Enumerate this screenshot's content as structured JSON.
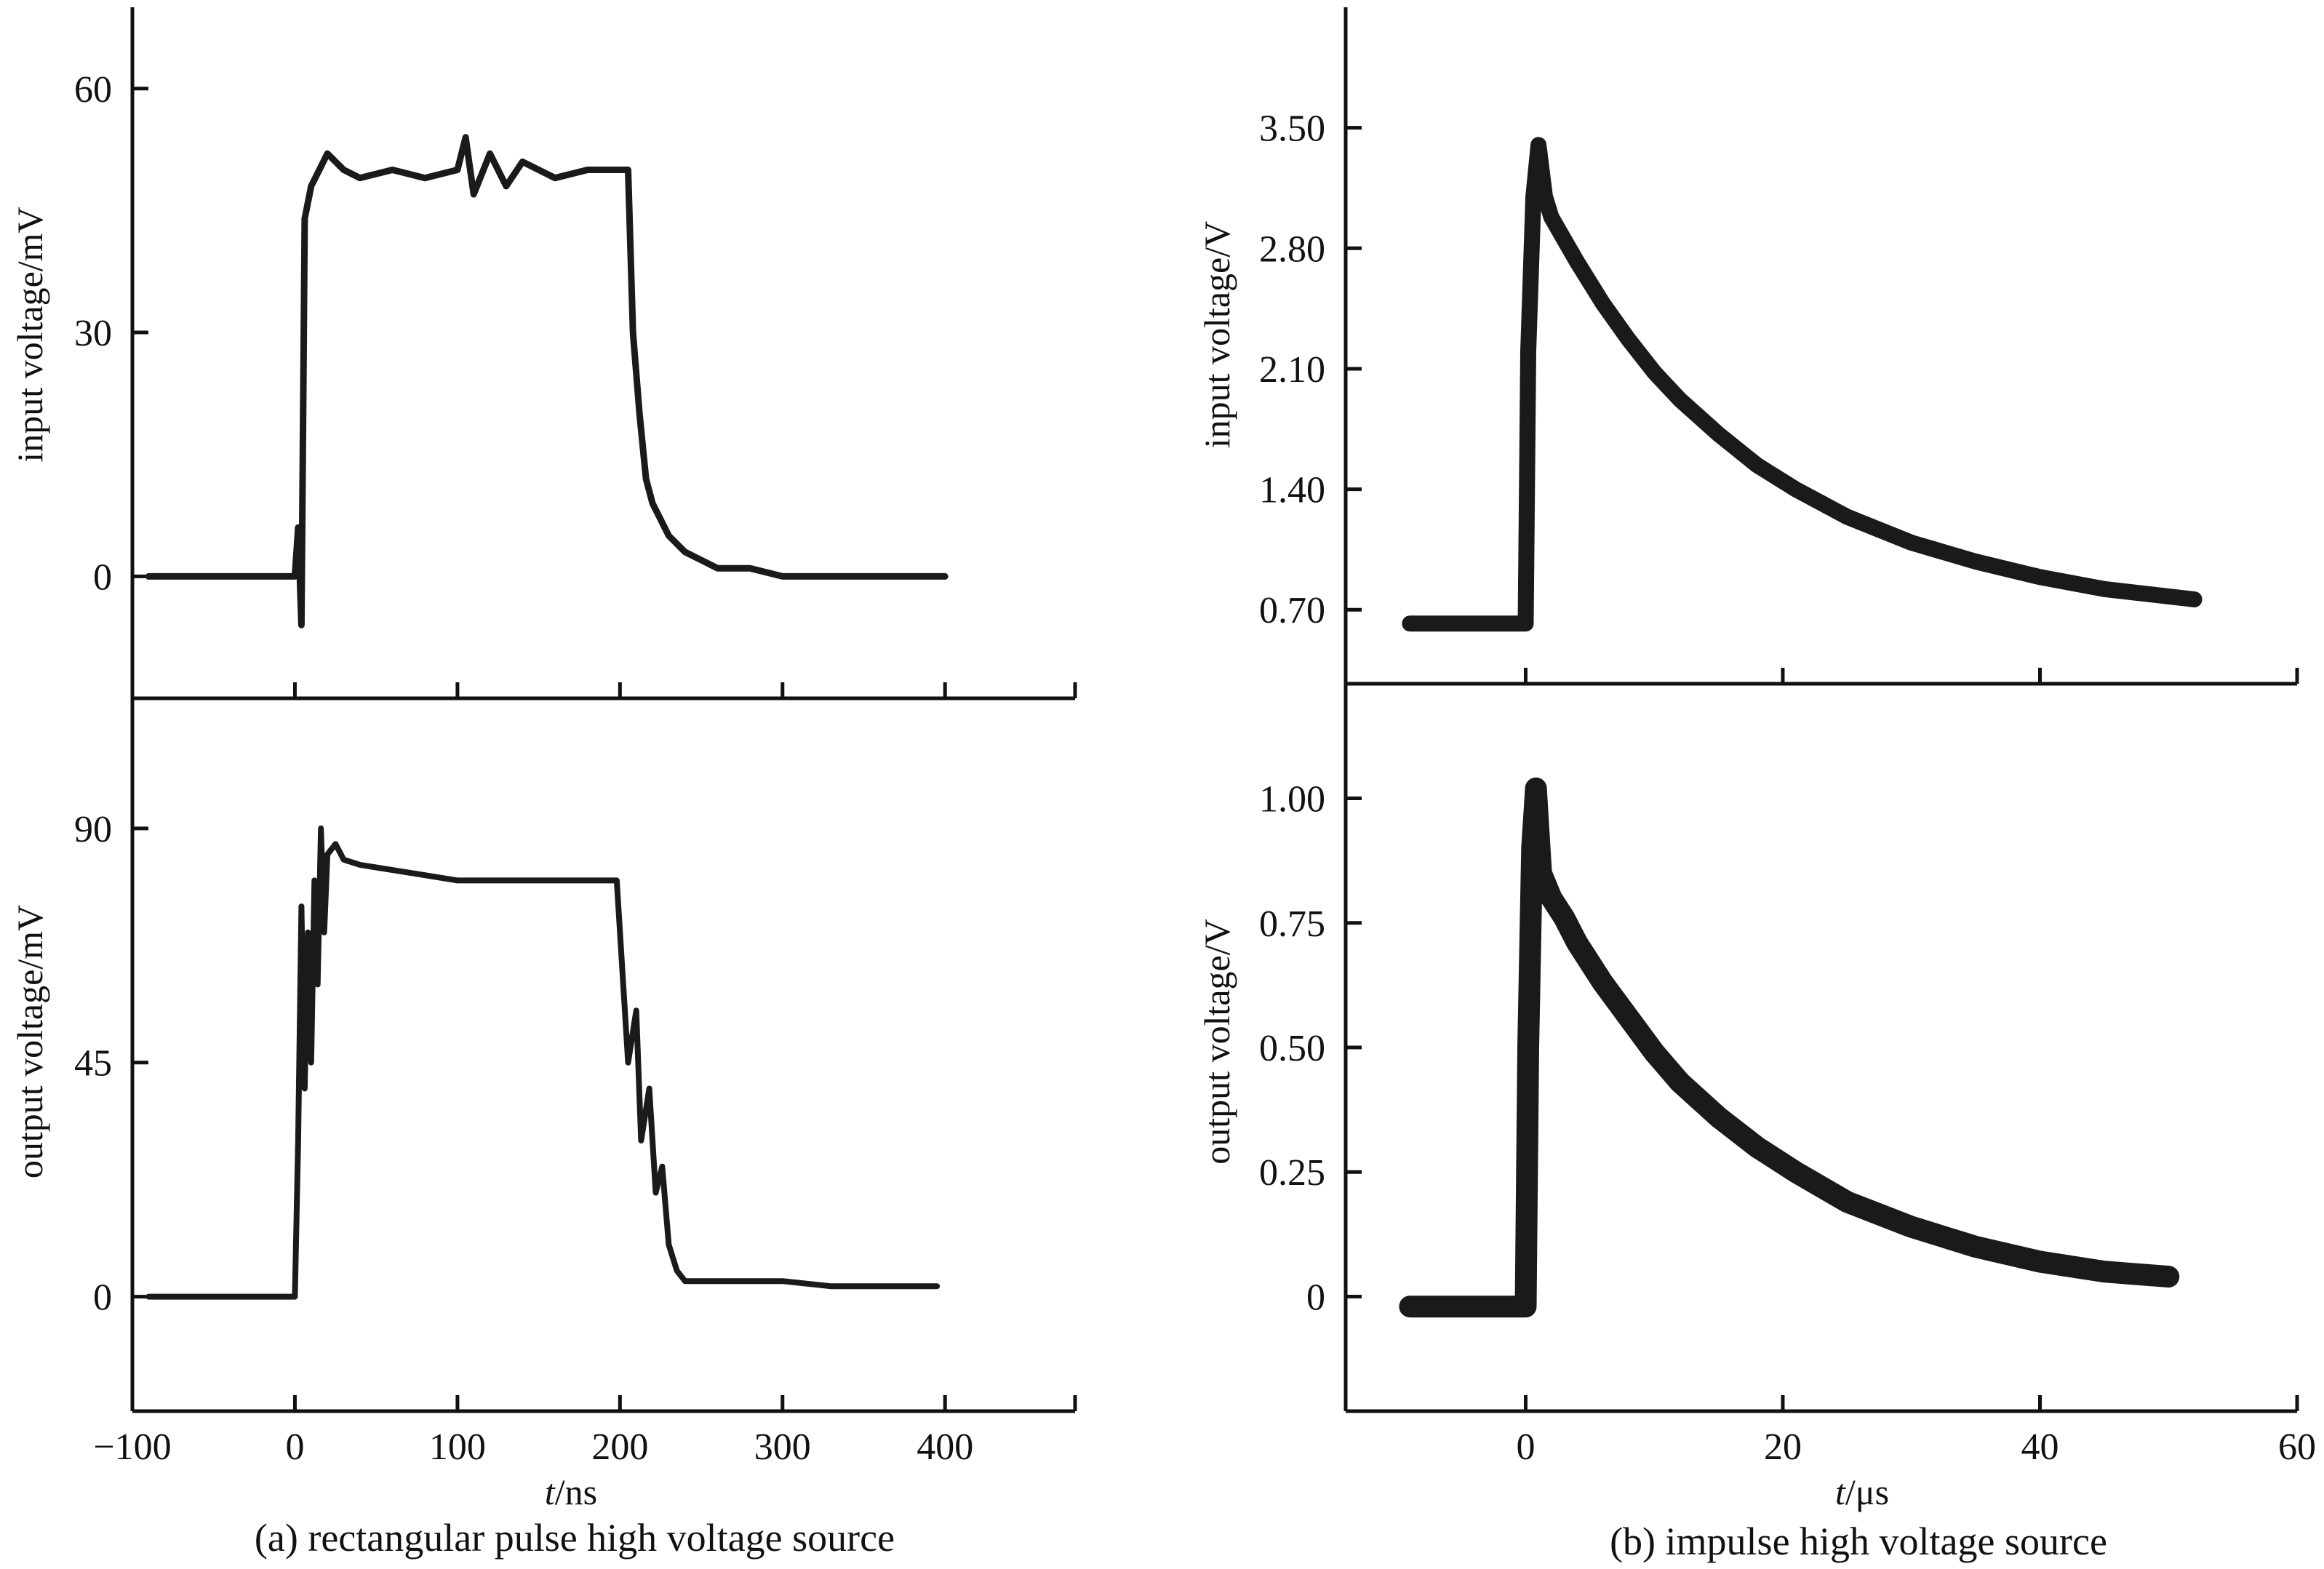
{
  "chart_data": [
    {
      "type": "line",
      "panel": "(a) top",
      "ylabel": "input voltage/mV",
      "xlim": [
        -100,
        480
      ],
      "ylim": [
        -15,
        70
      ],
      "yticks": [
        0,
        30,
        60
      ],
      "xticks": [
        -100,
        0,
        100,
        200,
        300,
        400
      ],
      "x_ticklabels_shown": false,
      "color": "#1a1a1a",
      "series": [
        {
          "x": [
            -90,
            -40,
            0,
            2,
            4,
            6,
            10,
            15,
            20,
            30,
            40,
            60,
            80,
            100,
            105,
            110,
            120,
            130,
            140,
            160,
            180,
            200,
            205,
            208,
            212,
            216,
            220,
            225,
            230,
            240,
            250,
            260,
            280,
            300,
            330,
            360,
            400
          ],
          "y": [
            0,
            0,
            0,
            6,
            -6,
            44,
            48,
            50,
            52,
            50,
            49,
            50,
            49,
            50,
            54,
            47,
            52,
            48,
            51,
            49,
            50,
            50,
            50,
            30,
            20,
            12,
            9,
            7,
            5,
            3,
            2,
            1,
            1,
            0,
            0,
            0,
            0
          ]
        }
      ]
    },
    {
      "type": "line",
      "panel": "(a) bottom",
      "ylabel": "output voltage/mV",
      "xlabel": "t/ns",
      "xlim": [
        -100,
        480
      ],
      "ylim": [
        -22,
        115
      ],
      "yticks": [
        0,
        45,
        90
      ],
      "xticks": [
        -100,
        0,
        100,
        200,
        300,
        400
      ],
      "color": "#1a1a1a",
      "series": [
        {
          "x": [
            -90,
            -40,
            0,
            2,
            4,
            6,
            8,
            10,
            12,
            14,
            16,
            18,
            20,
            25,
            30,
            40,
            60,
            80,
            100,
            130,
            160,
            190,
            198,
            202,
            205,
            210,
            213,
            218,
            222,
            226,
            230,
            235,
            240,
            245,
            250,
            260,
            280,
            300,
            330,
            360,
            395
          ],
          "y": [
            0,
            0,
            0,
            30,
            75,
            40,
            70,
            45,
            80,
            60,
            90,
            70,
            85,
            87,
            84,
            83,
            82,
            81,
            80,
            80,
            80,
            80,
            80,
            60,
            45,
            55,
            30,
            40,
            20,
            25,
            10,
            5,
            3,
            3,
            3,
            3,
            3,
            3,
            2,
            2,
            2
          ]
        }
      ]
    },
    {
      "type": "line",
      "panel": "(b) top",
      "ylabel": "input voltage/V",
      "xlim": [
        -14,
        60
      ],
      "ylim": [
        0.27,
        4.2
      ],
      "yticks": [
        0.7,
        1.4,
        2.1,
        2.8,
        3.5
      ],
      "yticklabels": [
        "0.70",
        "1.40",
        "2.10",
        "2.80",
        "3.50"
      ],
      "xticks": [
        0,
        20,
        40,
        60
      ],
      "x_ticklabels_shown": false,
      "color": "#1a1a1a",
      "series": [
        {
          "x": [
            -9,
            -5,
            0,
            0.2,
            0.6,
            1,
            1.5,
            2,
            3,
            4,
            6,
            8,
            10,
            12,
            15,
            18,
            21,
            25,
            30,
            35,
            40,
            45,
            52
          ],
          "y": [
            0.62,
            0.62,
            0.62,
            2.2,
            3.1,
            3.4,
            3.1,
            2.98,
            2.85,
            2.72,
            2.48,
            2.27,
            2.08,
            1.92,
            1.72,
            1.54,
            1.4,
            1.24,
            1.09,
            0.98,
            0.89,
            0.82,
            0.76
          ]
        }
      ]
    },
    {
      "type": "line",
      "panel": "(b) bottom",
      "ylabel": "output voltage/V",
      "xlabel": "t/μs",
      "xlim": [
        -14,
        60
      ],
      "ylim": [
        -0.23,
        1.23
      ],
      "yticks": [
        0,
        0.25,
        0.5,
        0.75,
        1.0
      ],
      "yticklabels": [
        "0",
        "0.25",
        "0.50",
        "0.75",
        "1.00"
      ],
      "xticks": [
        0,
        20,
        40,
        60
      ],
      "color": "#1a1a1a",
      "series": [
        {
          "x": [
            -9,
            -5,
            0,
            0.2,
            0.5,
            0.8,
            1.2,
            2,
            3,
            4,
            6,
            8,
            10,
            12,
            15,
            18,
            21,
            25,
            30,
            35,
            40,
            45,
            50
          ],
          "y": [
            -0.02,
            -0.02,
            -0.02,
            0.5,
            0.9,
            1.02,
            0.85,
            0.8,
            0.76,
            0.71,
            0.63,
            0.56,
            0.49,
            0.43,
            0.36,
            0.3,
            0.25,
            0.19,
            0.14,
            0.1,
            0.07,
            0.05,
            0.04
          ]
        }
      ]
    }
  ],
  "captions": {
    "left": "(a) rectangular pulse high voltage source",
    "right": "(b) impulse high voltage source"
  },
  "xlabels": {
    "left_prefix": "t",
    "left_unit": "/ns",
    "right_prefix": "t",
    "right_unit": "/μs"
  },
  "ylabels": {
    "a_top": "input voltage/mV",
    "a_bottom": "output voltage/mV",
    "b_top": "input voltage/V",
    "b_bottom": "output voltage/V"
  },
  "x_ticklabels": {
    "left": [
      "−100",
      "0",
      "100",
      "200",
      "300",
      "400"
    ],
    "right": [
      "0",
      "20",
      "40",
      "60"
    ]
  }
}
